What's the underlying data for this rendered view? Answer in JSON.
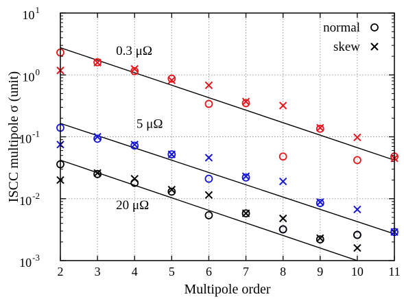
{
  "chart_data": {
    "type": "scatter",
    "title": "",
    "xlabel": "Multipole order",
    "ylabel": "ISCC multipole σ (unit)",
    "xlim": [
      2,
      11
    ],
    "ylim": [
      0.001,
      10
    ],
    "yscale": "log",
    "xticks": [
      "2",
      "3",
      "4",
      "5",
      "6",
      "7",
      "8",
      "9",
      "10",
      "11"
    ],
    "yticks": [
      {
        "value": 0.001,
        "base": "10",
        "exp": "-3"
      },
      {
        "value": 0.01,
        "base": "10",
        "exp": "-2"
      },
      {
        "value": 0.1,
        "base": "10",
        "exp": "-1"
      },
      {
        "value": 1,
        "base": "10",
        "exp": "0"
      },
      {
        "value": 10,
        "base": "10",
        "exp": "1"
      }
    ],
    "grid": true,
    "legend": {
      "position": "top-right",
      "entries": [
        {
          "label": "normal",
          "marker": "circle"
        },
        {
          "label": "skew",
          "marker": "cross"
        }
      ]
    },
    "groups": [
      {
        "label": "0.3 μΩ",
        "color": "#e8141b",
        "x": [
          2,
          3,
          4,
          5,
          6,
          7,
          8,
          9,
          10,
          11
        ],
        "normal": [
          2.3,
          1.6,
          1.15,
          0.87,
          0.34,
          0.35,
          0.048,
          0.135,
          0.042,
          0.048
        ],
        "skew": [
          1.18,
          1.58,
          1.25,
          0.82,
          0.68,
          0.37,
          0.32,
          0.14,
          0.098,
          0.045
        ],
        "fit": {
          "x": [
            2,
            11
          ],
          "y": [
            2.75,
            0.042
          ]
        }
      },
      {
        "label": "5 μΩ",
        "color": "#1515d8",
        "x": [
          2,
          3,
          4,
          5,
          6,
          7,
          8,
          9,
          10,
          11
        ],
        "normal": [
          0.14,
          0.093,
          0.072,
          0.052,
          0.021,
          0.022,
          0.0032,
          0.0085,
          0.0026,
          0.0029
        ],
        "skew": [
          0.075,
          0.1,
          0.075,
          0.052,
          0.046,
          0.023,
          0.019,
          0.0088,
          0.0067,
          0.0029
        ],
        "fit": {
          "x": [
            2,
            11
          ],
          "y": [
            0.165,
            0.0027
          ]
        }
      },
      {
        "label": "20 μΩ",
        "color": "#000000",
        "x": [
          2,
          3,
          4,
          5,
          6,
          7,
          8,
          9,
          10
        ],
        "normal": [
          0.036,
          0.025,
          0.018,
          0.013,
          0.0054,
          0.0058,
          0.0032,
          0.0022,
          0.0026
        ],
        "skew": [
          0.02,
          0.026,
          0.021,
          0.014,
          0.0115,
          0.0058,
          0.0048,
          0.0023,
          0.0016
        ],
        "fit": {
          "x": [
            2,
            10
          ],
          "y": [
            0.042,
            0.001
          ]
        }
      }
    ],
    "annotations": [
      {
        "text": "0.3 μΩ",
        "x": 3.5,
        "y": 2.1
      },
      {
        "text": "5 μΩ",
        "x": 4.05,
        "y": 0.14
      },
      {
        "text": "20 μΩ",
        "x": 3.5,
        "y": 0.0068
      }
    ]
  }
}
